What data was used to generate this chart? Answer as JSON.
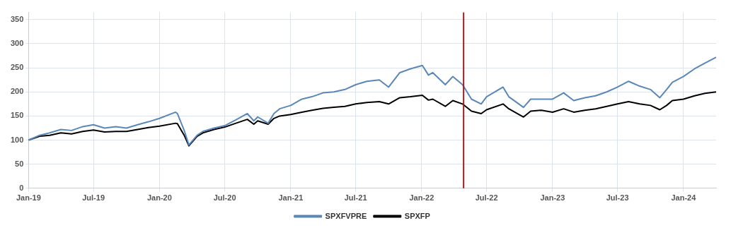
{
  "chart_data": {
    "type": "line",
    "xlim": [
      "2019-01-01",
      "2024-04-01"
    ],
    "ylim": [
      0,
      365
    ],
    "xticks": [
      {
        "value": "2019-01-01",
        "label": "Jan-19"
      },
      {
        "value": "2019-07-01",
        "label": "Jul-19"
      },
      {
        "value": "2020-01-01",
        "label": "Jan-20"
      },
      {
        "value": "2020-07-01",
        "label": "Jul-20"
      },
      {
        "value": "2021-01-01",
        "label": "Jan-21"
      },
      {
        "value": "2021-07-01",
        "label": "Jul-21"
      },
      {
        "value": "2022-01-01",
        "label": "Jan-22"
      },
      {
        "value": "2022-07-01",
        "label": "Jul-22"
      },
      {
        "value": "2023-01-01",
        "label": "Jan-23"
      },
      {
        "value": "2023-07-01",
        "label": "Jul-23"
      },
      {
        "value": "2024-01-01",
        "label": "Jan-24"
      }
    ],
    "yticks": [
      0,
      50,
      100,
      150,
      200,
      250,
      300,
      350
    ],
    "x": [
      "2019-01-01",
      "2019-02-01",
      "2019-03-01",
      "2019-04-01",
      "2019-05-01",
      "2019-06-01",
      "2019-07-01",
      "2019-08-01",
      "2019-09-01",
      "2019-10-01",
      "2019-11-01",
      "2019-12-01",
      "2020-01-01",
      "2020-02-15",
      "2020-02-20",
      "2020-03-10",
      "2020-03-23",
      "2020-04-15",
      "2020-05-01",
      "2020-06-01",
      "2020-07-01",
      "2020-08-01",
      "2020-09-02",
      "2020-09-20",
      "2020-10-01",
      "2020-10-30",
      "2020-11-15",
      "2020-12-01",
      "2021-01-01",
      "2021-02-01",
      "2021-03-01",
      "2021-04-01",
      "2021-05-01",
      "2021-06-01",
      "2021-07-01",
      "2021-08-01",
      "2021-09-05",
      "2021-10-01",
      "2021-11-01",
      "2021-12-01",
      "2022-01-03",
      "2022-01-20",
      "2022-02-01",
      "2022-03-08",
      "2022-03-29",
      "2022-04-25",
      "2022-05-20",
      "2022-06-16",
      "2022-07-01",
      "2022-08-16",
      "2022-09-01",
      "2022-10-12",
      "2022-11-01",
      "2022-12-01",
      "2023-01-01",
      "2023-02-01",
      "2023-03-01",
      "2023-04-01",
      "2023-05-01",
      "2023-06-01",
      "2023-07-01",
      "2023-08-01",
      "2023-09-01",
      "2023-10-01",
      "2023-10-27",
      "2023-11-15",
      "2023-12-01",
      "2024-01-01",
      "2024-02-01",
      "2024-03-01",
      "2024-04-01"
    ],
    "series": [
      {
        "name": "SPXFVPRE",
        "color": "#5b87b8",
        "values": [
          100,
          110,
          115,
          122,
          120,
          128,
          132,
          125,
          128,
          125,
          132,
          138,
          145,
          158,
          155,
          120,
          90,
          110,
          118,
          125,
          130,
          142,
          155,
          140,
          148,
          135,
          155,
          165,
          172,
          185,
          190,
          198,
          200,
          205,
          215,
          222,
          225,
          210,
          240,
          248,
          255,
          235,
          240,
          215,
          232,
          215,
          185,
          175,
          190,
          210,
          190,
          168,
          185,
          185,
          185,
          198,
          182,
          188,
          192,
          200,
          210,
          222,
          212,
          205,
          188,
          205,
          220,
          232,
          248,
          260,
          272
        ]
      },
      {
        "name": "SPXFP",
        "color": "#000000",
        "values": [
          100,
          108,
          110,
          115,
          113,
          118,
          121,
          117,
          118,
          118,
          122,
          126,
          129,
          135,
          134,
          110,
          88,
          108,
          115,
          122,
          127,
          135,
          143,
          133,
          140,
          133,
          145,
          150,
          153,
          158,
          162,
          166,
          168,
          170,
          175,
          178,
          180,
          175,
          188,
          190,
          193,
          183,
          185,
          170,
          182,
          175,
          160,
          155,
          163,
          175,
          165,
          148,
          160,
          162,
          158,
          165,
          158,
          162,
          165,
          170,
          175,
          180,
          175,
          172,
          163,
          172,
          182,
          185,
          192,
          197,
          200
        ]
      }
    ],
    "ref_lines": [
      {
        "axis": "x",
        "value": "2022-04-28",
        "color": "#a01c1c"
      }
    ],
    "grid": true,
    "legend": "bottom",
    "marker": "none",
    "line_style": "solid"
  }
}
